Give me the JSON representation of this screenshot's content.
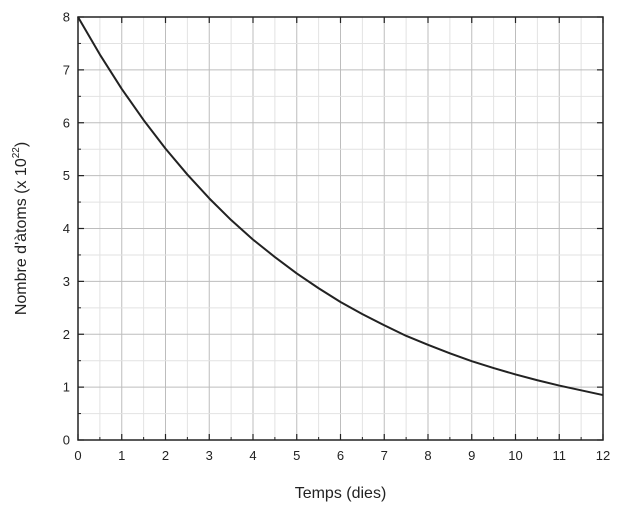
{
  "chart_data": {
    "type": "line",
    "xlabel": "Temps (dies)",
    "ylabel_prefix": "Nombre d'àtoms (x 10",
    "ylabel_exponent": "22",
    "ylabel_suffix": ")",
    "xlim": [
      0,
      12
    ],
    "ylim": [
      0,
      8
    ],
    "xticks": [
      "0",
      "1",
      "2",
      "3",
      "4",
      "5",
      "6",
      "7",
      "8",
      "9",
      "10",
      "11",
      "12"
    ],
    "yticks": [
      "0",
      "1",
      "2",
      "3",
      "4",
      "5",
      "6",
      "7",
      "8"
    ],
    "grid": true,
    "series": [
      {
        "color": "#222222",
        "x": [
          0,
          0.5,
          1,
          1.5,
          2,
          2.5,
          3,
          3.5,
          4,
          4.5,
          5,
          5.5,
          6,
          6.5,
          7,
          7.5,
          8,
          8.5,
          9,
          9.5,
          10,
          10.5,
          11,
          11.5,
          12
        ],
        "y": [
          8.0,
          7.29,
          6.64,
          6.05,
          5.51,
          5.02,
          4.57,
          4.16,
          3.79,
          3.46,
          3.15,
          2.87,
          2.61,
          2.38,
          2.17,
          1.97,
          1.8,
          1.64,
          1.49,
          1.36,
          1.24,
          1.13,
          1.03,
          0.94,
          0.85
        ]
      }
    ]
  }
}
